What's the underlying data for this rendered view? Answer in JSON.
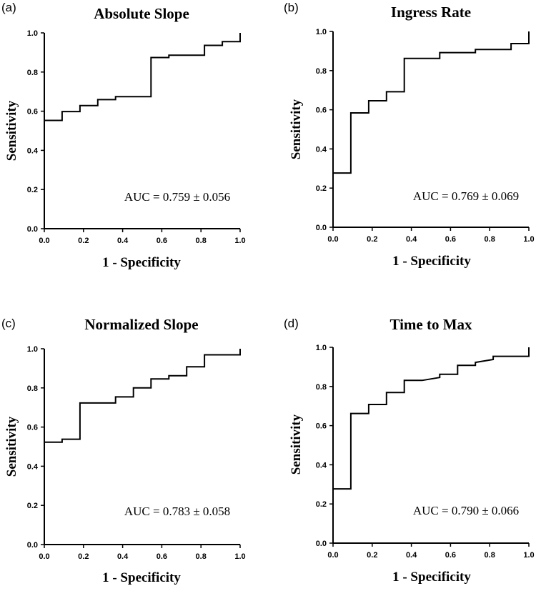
{
  "chart_data": [
    {
      "type": "line",
      "panel": "(a)",
      "title": "Absolute Slope",
      "xlabel": "1 - Specificity",
      "ylabel": "Sensitivity",
      "xlim": [
        0,
        1
      ],
      "ylim": [
        0,
        1
      ],
      "xticks": [
        "0.0",
        "0.2",
        "0.4",
        "0.6",
        "0.8",
        "1.0"
      ],
      "yticks": [
        "0.0",
        "0.2",
        "0.4",
        "0.6",
        "0.8",
        "1.0"
      ],
      "annotation": "AUC = 0.759 ± 0.056",
      "x": [
        0,
        0,
        0.091,
        0.091,
        0.182,
        0.182,
        0.273,
        0.273,
        0.364,
        0.364,
        0.545,
        0.545,
        0.636,
        0.636,
        0.818,
        0.818,
        0.909,
        0.909,
        1.0,
        1.0
      ],
      "y": [
        0,
        0.553,
        0.553,
        0.598,
        0.598,
        0.629,
        0.629,
        0.659,
        0.659,
        0.674,
        0.674,
        0.874,
        0.874,
        0.886,
        0.886,
        0.936,
        0.936,
        0.955,
        0.955,
        1.0
      ]
    },
    {
      "type": "line",
      "panel": "(b)",
      "title": "Ingress Rate",
      "xlabel": "1 - Specificity",
      "ylabel": "Sensitivity",
      "xlim": [
        0,
        1
      ],
      "ylim": [
        0,
        1
      ],
      "xticks": [
        "0.0",
        "0.2",
        "0.4",
        "0.6",
        "0.8",
        "1.0"
      ],
      "yticks": [
        "0.0",
        "0.2",
        "0.4",
        "0.6",
        "0.8",
        "1.0"
      ],
      "annotation": "AUC = 0.769 ± 0.069",
      "x": [
        0,
        0,
        0.091,
        0.091,
        0.182,
        0.182,
        0.273,
        0.273,
        0.364,
        0.364,
        0.545,
        0.545,
        0.727,
        0.727,
        0.909,
        0.909,
        1.0,
        1.0
      ],
      "y": [
        0,
        0.277,
        0.277,
        0.584,
        0.584,
        0.646,
        0.646,
        0.692,
        0.692,
        0.862,
        0.862,
        0.892,
        0.892,
        0.908,
        0.908,
        0.938,
        0.938,
        1.0
      ]
    },
    {
      "type": "line",
      "panel": "(c)",
      "title": "Normalized Slope",
      "xlabel": "1 - Specificity",
      "ylabel": "Sensitivity",
      "xlim": [
        0,
        1
      ],
      "ylim": [
        0,
        1
      ],
      "xticks": [
        "0.0",
        "0.2",
        "0.4",
        "0.6",
        "0.8",
        "1.0"
      ],
      "yticks": [
        "0.0",
        "0.2",
        "0.4",
        "0.6",
        "0.8",
        "1.0"
      ],
      "annotation": "AUC = 0.783 ± 0.058",
      "x": [
        0,
        0,
        0.091,
        0.091,
        0.182,
        0.182,
        0.364,
        0.364,
        0.455,
        0.455,
        0.545,
        0.545,
        0.636,
        0.636,
        0.727,
        0.727,
        0.818,
        0.818,
        1.0,
        1.0
      ],
      "y": [
        0,
        0.523,
        0.523,
        0.538,
        0.538,
        0.723,
        0.723,
        0.754,
        0.754,
        0.8,
        0.8,
        0.846,
        0.846,
        0.862,
        0.862,
        0.908,
        0.908,
        0.969,
        0.969,
        1.0
      ]
    },
    {
      "type": "line",
      "panel": "(d)",
      "title": "Time to Max",
      "xlabel": "1 - Specificity",
      "ylabel": "Sensitivity",
      "xlim": [
        0,
        1
      ],
      "ylim": [
        0,
        1
      ],
      "xticks": [
        "0.0",
        "0.2",
        "0.4",
        "0.6",
        "0.8",
        "1.0"
      ],
      "yticks": [
        "0.0",
        "0.2",
        "0.4",
        "0.6",
        "0.8",
        "1.0"
      ],
      "annotation": "AUC = 0.790 ± 0.066",
      "x": [
        0,
        0,
        0.091,
        0.091,
        0.182,
        0.182,
        0.273,
        0.273,
        0.364,
        0.364,
        0.455,
        0.545,
        0.545,
        0.636,
        0.636,
        0.727,
        0.727,
        0.818,
        0.818,
        1.0,
        1.0
      ],
      "y": [
        0,
        0.277,
        0.277,
        0.662,
        0.662,
        0.708,
        0.708,
        0.769,
        0.769,
        0.831,
        0.831,
        0.846,
        0.862,
        0.862,
        0.908,
        0.908,
        0.923,
        0.938,
        0.954,
        0.954,
        1.0
      ]
    }
  ]
}
